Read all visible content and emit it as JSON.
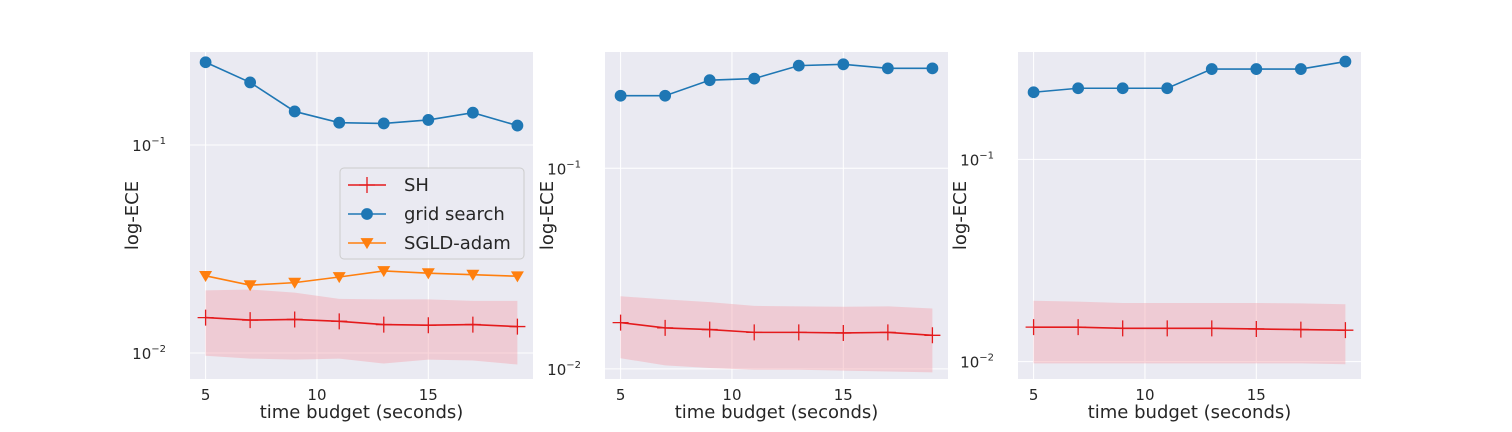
{
  "colors": {
    "sh": "#e41a1c",
    "grid": "#1f77b4",
    "sgld": "#ff7f0e",
    "band": "#f4a6b0",
    "panel_bg": "#eaeaf2",
    "grid_line": "#ffffff"
  },
  "legend": {
    "panel": 0,
    "placement": "center-right",
    "entries": [
      {
        "key": "sh",
        "label": "SH",
        "marker": "plus"
      },
      {
        "key": "grid",
        "label": "grid search",
        "marker": "circle"
      },
      {
        "key": "sgld",
        "label": "SGLD-adam",
        "marker": "triangle-down"
      }
    ]
  },
  "chart_data": [
    {
      "type": "line",
      "xlabel": "time budget (seconds)",
      "ylabel": "log-ECE",
      "yscale": "log",
      "grid": true,
      "xlim": [
        4.3,
        19.7
      ],
      "ylim": [
        0.0075,
        0.28
      ],
      "xticks": [
        5,
        10,
        15
      ],
      "yticks": [
        {
          "value": 0.01,
          "base": "10",
          "exp": "−2"
        },
        {
          "value": 0.1,
          "base": "10",
          "exp": "−1"
        }
      ],
      "x": [
        5,
        7,
        9,
        11,
        13,
        15,
        17,
        19
      ],
      "series": [
        {
          "key": "sh",
          "name": "SH",
          "values": [
            0.0148,
            0.0144,
            0.0145,
            0.0142,
            0.0137,
            0.0136,
            0.0137,
            0.0134
          ],
          "band_low": [
            0.0097,
            0.0094,
            0.0093,
            0.0094,
            0.0089,
            0.0093,
            0.0092,
            0.0088
          ],
          "band_high": [
            0.02,
            0.0202,
            0.0195,
            0.0182,
            0.0181,
            0.0181,
            0.0178,
            0.0178
          ]
        },
        {
          "key": "grid",
          "name": "grid search",
          "values": [
            0.25,
            0.2,
            0.145,
            0.128,
            0.127,
            0.132,
            0.143,
            0.124
          ]
        },
        {
          "key": "sgld",
          "name": "SGLD-adam",
          "values": [
            0.0235,
            0.0212,
            0.0218,
            0.0232,
            0.0248,
            0.0242,
            0.0238,
            0.0234
          ]
        }
      ]
    },
    {
      "type": "line",
      "xlabel": "time budget (seconds)",
      "ylabel": "log-ECE",
      "yscale": "log",
      "grid": true,
      "xlim": [
        4.3,
        19.7
      ],
      "ylim": [
        0.0089,
        0.38
      ],
      "xticks": [
        5,
        10,
        15
      ],
      "yticks": [
        {
          "value": 0.01,
          "base": "10",
          "exp": "−2"
        },
        {
          "value": 0.1,
          "base": "10",
          "exp": "−1"
        }
      ],
      "x": [
        5,
        7,
        9,
        11,
        13,
        15,
        17,
        19
      ],
      "series": [
        {
          "key": "sh",
          "name": "SH",
          "values": [
            0.017,
            0.016,
            0.0157,
            0.0152,
            0.0152,
            0.0151,
            0.0152,
            0.0147
          ],
          "band_low": [
            0.0113,
            0.0104,
            0.0101,
            0.0099,
            0.0099,
            0.0098,
            0.0097,
            0.0096
          ],
          "band_high": [
            0.023,
            0.0222,
            0.0215,
            0.0206,
            0.0205,
            0.0204,
            0.0205,
            0.02
          ]
        },
        {
          "key": "grid",
          "name": "grid search",
          "values": [
            0.23,
            0.23,
            0.275,
            0.28,
            0.325,
            0.33,
            0.315,
            0.315
          ]
        }
      ]
    },
    {
      "type": "line",
      "xlabel": "time budget (seconds)",
      "ylabel": "log-ECE",
      "yscale": "log",
      "grid": true,
      "xlim": [
        4.3,
        19.7
      ],
      "ylim": [
        0.0082,
        0.34
      ],
      "xticks": [
        5,
        10,
        15
      ],
      "yticks": [
        {
          "value": 0.01,
          "base": "10",
          "exp": "−2"
        },
        {
          "value": 0.1,
          "base": "10",
          "exp": "−1"
        }
      ],
      "x": [
        5,
        7,
        9,
        11,
        13,
        15,
        17,
        19
      ],
      "series": [
        {
          "key": "sh",
          "name": "SH",
          "values": [
            0.0148,
            0.0148,
            0.0146,
            0.0146,
            0.0146,
            0.0145,
            0.0144,
            0.0143
          ],
          "band_low": [
            0.0098,
            0.0098,
            0.0098,
            0.0098,
            0.0098,
            0.0098,
            0.0098,
            0.0097
          ],
          "band_high": [
            0.02,
            0.0198,
            0.0195,
            0.0195,
            0.0195,
            0.0195,
            0.0194,
            0.0192
          ]
        },
        {
          "key": "grid",
          "name": "grid search",
          "values": [
            0.215,
            0.225,
            0.225,
            0.225,
            0.28,
            0.28,
            0.28,
            0.305
          ]
        }
      ]
    }
  ]
}
